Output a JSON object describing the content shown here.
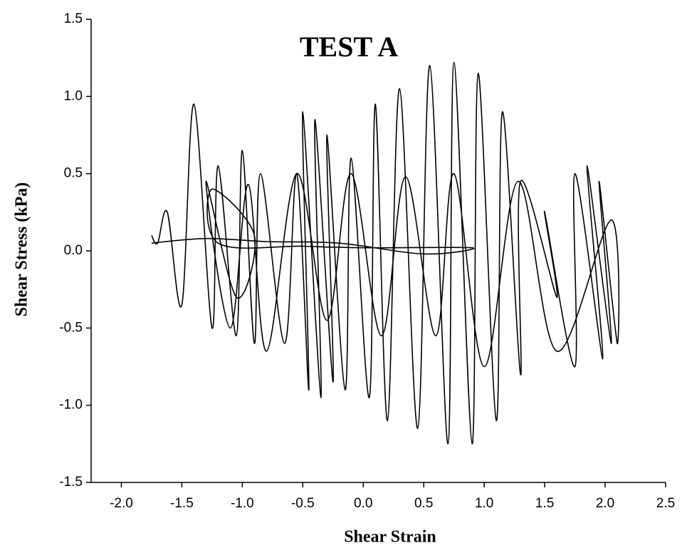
{
  "chart_data": {
    "type": "line",
    "annotation": "TEST A",
    "xlabel": "Shear Strain",
    "ylabel": "Shear Stress (kPa)",
    "xlim": [
      -2.25,
      2.5
    ],
    "ylim": [
      -1.5,
      1.5
    ],
    "xticks": [
      {
        "value": -2.0,
        "label": "-2.0"
      },
      -1.5,
      {
        "value": -1.0,
        "label": "-1.0"
      },
      -0.5,
      {
        "value": 0,
        "label": "0.0"
      },
      0.5,
      {
        "value": 1.0,
        "label": "1.0"
      },
      1.5,
      {
        "value": 2.0,
        "label": "2.0"
      },
      2.5
    ],
    "yticks": [
      -1.5,
      {
        "value": -1.0,
        "label": "-1.0"
      },
      -0.5,
      {
        "value": 0,
        "label": "0.0"
      },
      0.5,
      {
        "value": 1.0,
        "label": "1.0"
      },
      1.5
    ],
    "series": [
      {
        "color": "#000000",
        "x": [
          -1.75,
          -1.7,
          -1.62,
          -1.5,
          -1.4,
          -1.25,
          -1.2,
          -1.05,
          -1.0,
          -0.9,
          -0.85,
          -0.65,
          -0.55,
          -0.45,
          -0.5,
          -0.35,
          -0.4,
          -0.25,
          -0.3,
          -0.15,
          -0.1,
          0.05,
          0.1,
          0.2,
          0.3,
          0.45,
          0.55,
          0.7,
          0.75,
          0.9,
          0.95,
          1.1,
          1.15,
          1.3,
          1.3,
          1.6,
          1.5,
          1.75,
          1.75,
          1.98,
          1.85,
          2.05,
          1.95,
          2.1,
          2.05,
          1.6,
          1.28,
          1.0,
          0.75,
          0.6,
          0.35,
          0.15,
          -0.1,
          -0.3,
          -0.55,
          -0.8,
          -0.95,
          -1.1,
          -1.3,
          -1.05,
          -0.9,
          -1.25,
          -1.2,
          -0.5,
          0.0,
          0.9,
          0.5,
          -0.2,
          -0.8,
          -1.3,
          -1.75
        ],
        "values": [
          0.1,
          0.05,
          0.25,
          -0.35,
          0.95,
          -0.5,
          0.55,
          -0.55,
          0.65,
          -0.6,
          0.5,
          -0.6,
          0.5,
          -0.9,
          0.9,
          -0.95,
          0.85,
          -0.85,
          0.75,
          -0.9,
          0.6,
          -0.95,
          0.95,
          -1.1,
          1.05,
          -1.15,
          1.2,
          -1.25,
          1.22,
          -1.25,
          1.15,
          -1.1,
          0.9,
          -0.8,
          0.45,
          -0.3,
          0.25,
          -0.75,
          0.5,
          -0.7,
          0.55,
          -0.6,
          0.45,
          -0.6,
          0.2,
          -0.65,
          0.45,
          -0.75,
          0.5,
          -0.55,
          0.48,
          -0.55,
          0.5,
          -0.45,
          0.5,
          -0.65,
          0.43,
          -0.5,
          0.45,
          -0.3,
          0.1,
          0.4,
          0.05,
          0.03,
          0.02,
          0.02,
          -0.02,
          0.05,
          0.06,
          0.08,
          0.05
        ]
      }
    ]
  }
}
